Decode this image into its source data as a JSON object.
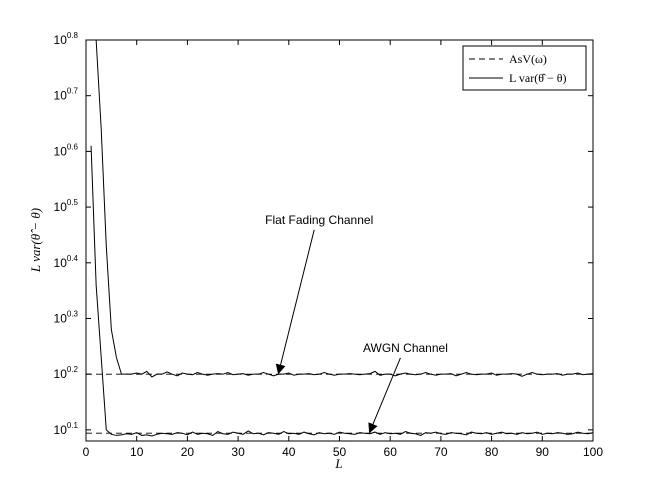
{
  "chart_data": {
    "type": "line",
    "xlabel": "L",
    "ylabel": "L var(θ̂ − θ)",
    "xlim": [
      0,
      100
    ],
    "ylim": [
      0.08,
      0.8
    ],
    "y_scale": "log10",
    "grid": false,
    "legend_position": "top-right",
    "x_ticks": [
      0,
      10,
      20,
      30,
      40,
      50,
      60,
      70,
      80,
      90,
      100
    ],
    "y_ticks": [
      {
        "base": "10",
        "exp": "0.8",
        "value": 0.8
      },
      {
        "base": "10",
        "exp": "0.7",
        "value": 0.7
      },
      {
        "base": "10",
        "exp": "0.6",
        "value": 0.6
      },
      {
        "base": "10",
        "exp": "0.5",
        "value": 0.5
      },
      {
        "base": "10",
        "exp": "0.4",
        "value": 0.4
      },
      {
        "base": "10",
        "exp": "0.3",
        "value": 0.3
      },
      {
        "base": "10",
        "exp": "0.2",
        "value": 0.2
      },
      {
        "base": "10",
        "exp": "0.1",
        "value": 0.1
      }
    ],
    "legend": [
      {
        "label": "AsV(ω)",
        "style": "dashed"
      },
      {
        "label": "L var(θ̂ − θ)",
        "style": "solid"
      }
    ],
    "series": [
      {
        "name": "AsV(ω)",
        "style": "dashed",
        "x": [
          0,
          100
        ],
        "y_exponent": [
          0.2,
          0.2
        ]
      },
      {
        "name": "L var(θ̂ − θ)",
        "style": "solid",
        "x": [
          1,
          2,
          3,
          4,
          5,
          6,
          7,
          8,
          9,
          10,
          11,
          12,
          13,
          14,
          15,
          16,
          17,
          18,
          19,
          20,
          21,
          22,
          23,
          24,
          25,
          26,
          27,
          28,
          29,
          30,
          31,
          32,
          33,
          34,
          35,
          36,
          37,
          38,
          39,
          40,
          41,
          42,
          43,
          44,
          45,
          46,
          47,
          48,
          49,
          50,
          51,
          52,
          53,
          54,
          55,
          56,
          57,
          58,
          59,
          60,
          61,
          62,
          63,
          64,
          65,
          66,
          67,
          68,
          69,
          70,
          71,
          72,
          73,
          74,
          75,
          76,
          77,
          78,
          79,
          80,
          81,
          82,
          83,
          84,
          85,
          86,
          87,
          88,
          89,
          90,
          91,
          92,
          93,
          94,
          95,
          96,
          97,
          98,
          99,
          100
        ],
        "y_exponent": [
          0.8,
          0.8,
          0.64,
          0.43,
          0.28,
          0.23,
          0.2,
          0.2,
          0.2,
          0.202,
          0.2,
          0.205,
          0.195,
          0.2,
          0.2,
          0.204,
          0.2,
          0.197,
          0.202,
          0.2,
          0.199,
          0.203,
          0.2,
          0.198,
          0.2,
          0.201,
          0.2,
          0.203,
          0.199,
          0.2,
          0.201,
          0.198,
          0.2,
          0.2,
          0.203,
          0.2,
          0.197,
          0.2,
          0.2,
          0.202,
          0.198,
          0.2,
          0.2,
          0.201,
          0.199,
          0.2,
          0.203,
          0.2,
          0.198,
          0.2,
          0.2,
          0.201,
          0.2,
          0.199,
          0.2,
          0.201,
          0.205,
          0.198,
          0.2,
          0.2,
          0.197,
          0.2,
          0.202,
          0.2,
          0.199,
          0.2,
          0.203,
          0.2,
          0.198,
          0.2,
          0.2,
          0.201,
          0.197,
          0.2,
          0.203,
          0.2,
          0.199,
          0.2,
          0.2,
          0.202,
          0.198,
          0.2,
          0.2,
          0.201,
          0.2,
          0.196,
          0.2,
          0.203,
          0.2,
          0.199,
          0.2,
          0.2,
          0.201,
          0.198,
          0.2,
          0.2,
          0.202,
          0.199,
          0.2,
          0.201
        ]
      },
      {
        "name": "L var(θ̂ − θ)",
        "style": "dashed",
        "x": [
          0,
          100
        ],
        "y_exponent": [
          0.094,
          0.094
        ]
      },
      {
        "name": "L var(θ̂ − θ)",
        "style": "solid",
        "x": [
          1,
          2,
          3,
          4,
          5,
          6,
          7,
          8,
          9,
          10,
          11,
          12,
          13,
          14,
          15,
          16,
          17,
          18,
          19,
          20,
          21,
          22,
          23,
          24,
          25,
          26,
          27,
          28,
          29,
          30,
          31,
          32,
          33,
          34,
          35,
          36,
          37,
          38,
          39,
          40,
          41,
          42,
          43,
          44,
          45,
          46,
          47,
          48,
          49,
          50,
          51,
          52,
          53,
          54,
          55,
          56,
          57,
          58,
          59,
          60,
          61,
          62,
          63,
          64,
          65,
          66,
          67,
          68,
          69,
          70,
          71,
          72,
          73,
          74,
          75,
          76,
          77,
          78,
          79,
          80,
          81,
          82,
          83,
          84,
          85,
          86,
          87,
          88,
          89,
          90,
          91,
          92,
          93,
          94,
          95,
          96,
          97,
          98,
          99,
          100
        ],
        "y_exponent": [
          0.61,
          0.36,
          0.23,
          0.1,
          0.092,
          0.09,
          0.091,
          0.093,
          0.092,
          0.095,
          0.09,
          0.091,
          0.089,
          0.092,
          0.094,
          0.093,
          0.092,
          0.095,
          0.094,
          0.091,
          0.096,
          0.092,
          0.094,
          0.093,
          0.09,
          0.097,
          0.093,
          0.092,
          0.096,
          0.094,
          0.092,
          0.098,
          0.093,
          0.094,
          0.091,
          0.095,
          0.094,
          0.092,
          0.097,
          0.093,
          0.094,
          0.092,
          0.096,
          0.093,
          0.091,
          0.095,
          0.093,
          0.094,
          0.092,
          0.096,
          0.094,
          0.093,
          0.092,
          0.095,
          0.094,
          0.093,
          0.096,
          0.092,
          0.095,
          0.093,
          0.094,
          0.092,
          0.097,
          0.094,
          0.093,
          0.09,
          0.095,
          0.094,
          0.096,
          0.093,
          0.092,
          0.095,
          0.094,
          0.093,
          0.091,
          0.096,
          0.094,
          0.093,
          0.095,
          0.092,
          0.094,
          0.096,
          0.093,
          0.094,
          0.092,
          0.095,
          0.093,
          0.094,
          0.096,
          0.092,
          0.094,
          0.093,
          0.095,
          0.094,
          0.092,
          0.093,
          0.096,
          0.094,
          0.093,
          0.095
        ]
      }
    ],
    "annotations": [
      {
        "text": "Flat Fading Channel",
        "label_x": 46,
        "label_y_exponent": 0.47,
        "arrow_to_x": 38,
        "arrow_to_y_exponent": 0.203
      },
      {
        "text": "AWGN Channel",
        "label_x": 63,
        "label_y_exponent": 0.24,
        "arrow_to_x": 56,
        "arrow_to_y_exponent": 0.097
      }
    ]
  }
}
